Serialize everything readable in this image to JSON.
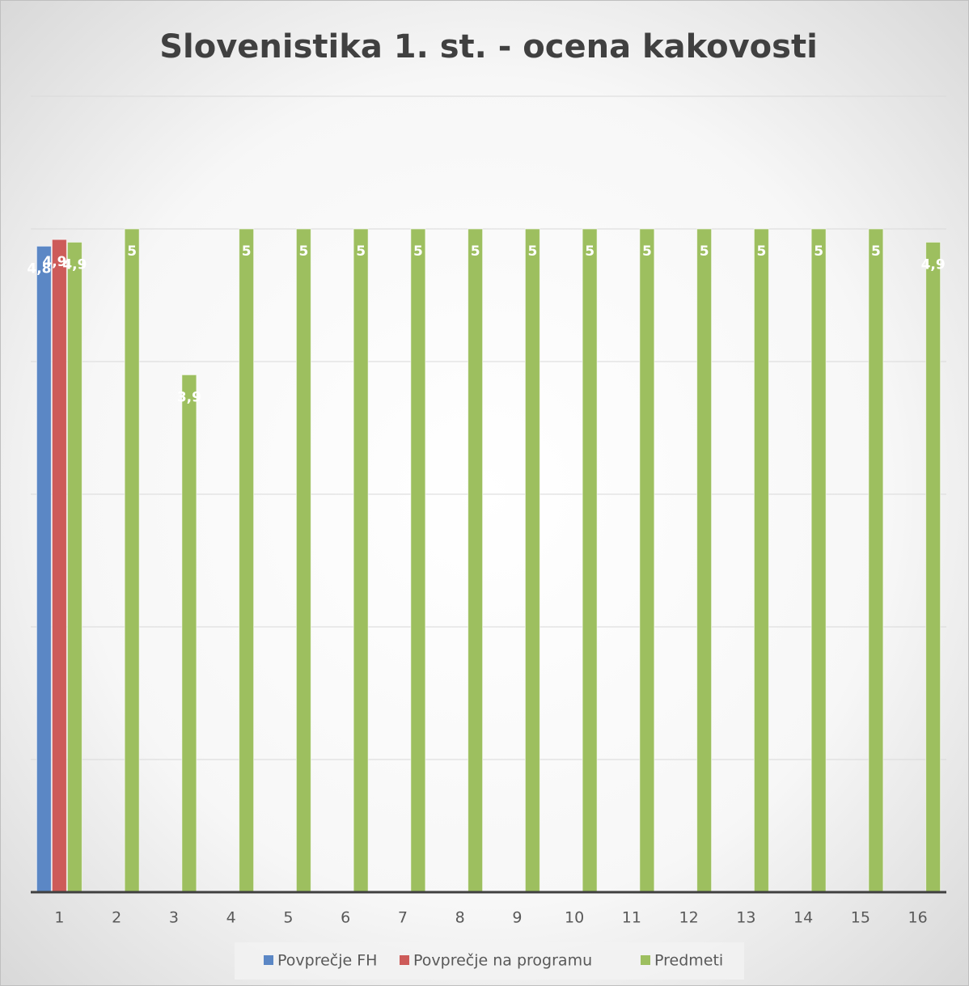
{
  "chart_data": {
    "type": "bar",
    "title": "Slovenistika 1. st. - ocena kakovosti",
    "categories": [
      "1",
      "2",
      "3",
      "4",
      "5",
      "6",
      "7",
      "8",
      "9",
      "10",
      "11",
      "12",
      "13",
      "14",
      "15",
      "16"
    ],
    "series": [
      {
        "name": "Povprečje FH",
        "color": "#5b87c5",
        "values": [
          4.87,
          null,
          null,
          null,
          null,
          null,
          null,
          null,
          null,
          null,
          null,
          null,
          null,
          null,
          null,
          null
        ],
        "value_labels": [
          "4,87",
          null,
          null,
          null,
          null,
          null,
          null,
          null,
          null,
          null,
          null,
          null,
          null,
          null,
          null,
          null
        ]
      },
      {
        "name": "Povprečje na programu",
        "color": "#cd5b59",
        "values": [
          4.92,
          null,
          null,
          null,
          null,
          null,
          null,
          null,
          null,
          null,
          null,
          null,
          null,
          null,
          null,
          null
        ],
        "value_labels": [
          "4,92",
          null,
          null,
          null,
          null,
          null,
          null,
          null,
          null,
          null,
          null,
          null,
          null,
          null,
          null,
          null
        ]
      },
      {
        "name": "Predmeti",
        "color": "#9dbf5f",
        "values": [
          4.9,
          5,
          3.9,
          5,
          5,
          5,
          5,
          5,
          5,
          5,
          5,
          5,
          5,
          5,
          5,
          4.9
        ],
        "value_labels": [
          "4,9",
          "5",
          "3,9",
          "5",
          "5",
          "5",
          "5",
          "5",
          "5",
          "5",
          "5",
          "5",
          "5",
          "5",
          "5",
          "4,9"
        ]
      }
    ],
    "ylim": [
      0,
      6
    ],
    "yticks": [
      0,
      1,
      2,
      3,
      4,
      5,
      6
    ],
    "grid": true,
    "legend": "bottom"
  }
}
